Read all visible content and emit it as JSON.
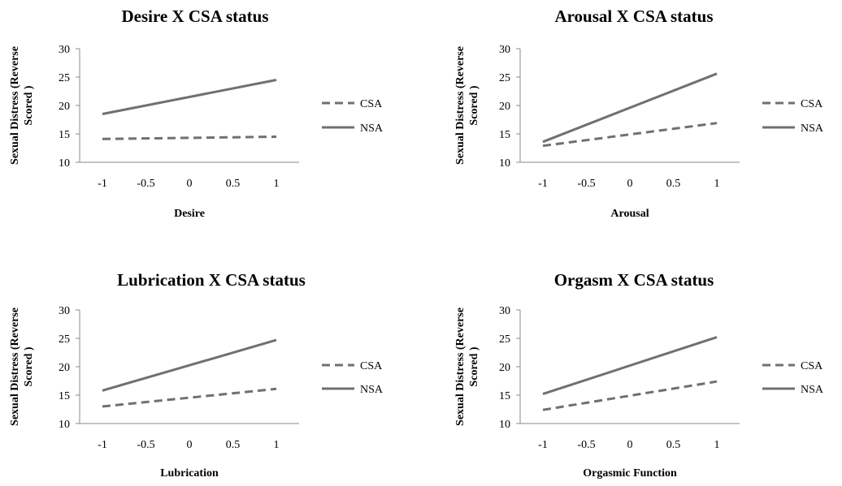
{
  "colors": {
    "series": "#707070",
    "axis": "#8a8a8a",
    "text": "#000000"
  },
  "chart_data": [
    {
      "type": "line",
      "title": "Desire X CSA status",
      "xlabel": "Desire",
      "ylabel": "Sexual Distress (Reverse Scored )",
      "x": [
        -1,
        1
      ],
      "xticks": [
        "-1",
        "-0.5",
        "0",
        "0.5",
        "1"
      ],
      "yticks": [
        "10",
        "15",
        "20",
        "25",
        "30"
      ],
      "ylim": [
        10,
        30
      ],
      "xlim": [
        -1,
        1
      ],
      "grid": false,
      "legend": "right",
      "series": [
        {
          "name": "CSA",
          "style": "dashed",
          "values": [
            14.1,
            14.5
          ]
        },
        {
          "name": "NSA",
          "style": "solid",
          "values": [
            18.5,
            24.5
          ]
        }
      ]
    },
    {
      "type": "line",
      "title": "Arousal X CSA status",
      "xlabel": "Arousal",
      "ylabel": "Sexual Distress (Reverse Scored )",
      "x": [
        -1,
        1
      ],
      "xticks": [
        "-1",
        "-0.5",
        "0",
        "0.5",
        "1"
      ],
      "yticks": [
        "10",
        "15",
        "20",
        "25",
        "30"
      ],
      "ylim": [
        10,
        30
      ],
      "xlim": [
        -1,
        1
      ],
      "grid": false,
      "legend": "right",
      "series": [
        {
          "name": "CSA",
          "style": "dashed",
          "values": [
            12.9,
            16.9
          ]
        },
        {
          "name": "NSA",
          "style": "solid",
          "values": [
            13.6,
            25.6
          ]
        }
      ]
    },
    {
      "type": "line",
      "title": "Lubrication X CSA status",
      "xlabel": "Lubrication",
      "ylabel": "Sexual Distress (Reverse Scored )",
      "x": [
        -1,
        1
      ],
      "xticks": [
        "-1",
        "-0.5",
        "0",
        "0.5",
        "1"
      ],
      "yticks": [
        "10",
        "15",
        "20",
        "25",
        "30"
      ],
      "ylim": [
        10,
        30
      ],
      "xlim": [
        -1,
        1
      ],
      "grid": false,
      "legend": "right",
      "series": [
        {
          "name": "CSA",
          "style": "dashed",
          "values": [
            13.0,
            16.1
          ]
        },
        {
          "name": "NSA",
          "style": "solid",
          "values": [
            15.8,
            24.7
          ]
        }
      ]
    },
    {
      "type": "line",
      "title": "Orgasm X CSA status",
      "xlabel": "Orgasmic Function",
      "ylabel": "Sexual Distress (Reverse Scored )",
      "x": [
        -1,
        1
      ],
      "xticks": [
        "-1",
        "-0.5",
        "0",
        "0.5",
        "1"
      ],
      "yticks": [
        "10",
        "15",
        "20",
        "25",
        "30"
      ],
      "ylim": [
        10,
        30
      ],
      "xlim": [
        -1,
        1
      ],
      "grid": false,
      "legend": "right",
      "series": [
        {
          "name": "CSA",
          "style": "dashed",
          "values": [
            12.4,
            17.4
          ]
        },
        {
          "name": "NSA",
          "style": "solid",
          "values": [
            15.2,
            25.2
          ]
        }
      ]
    }
  ]
}
